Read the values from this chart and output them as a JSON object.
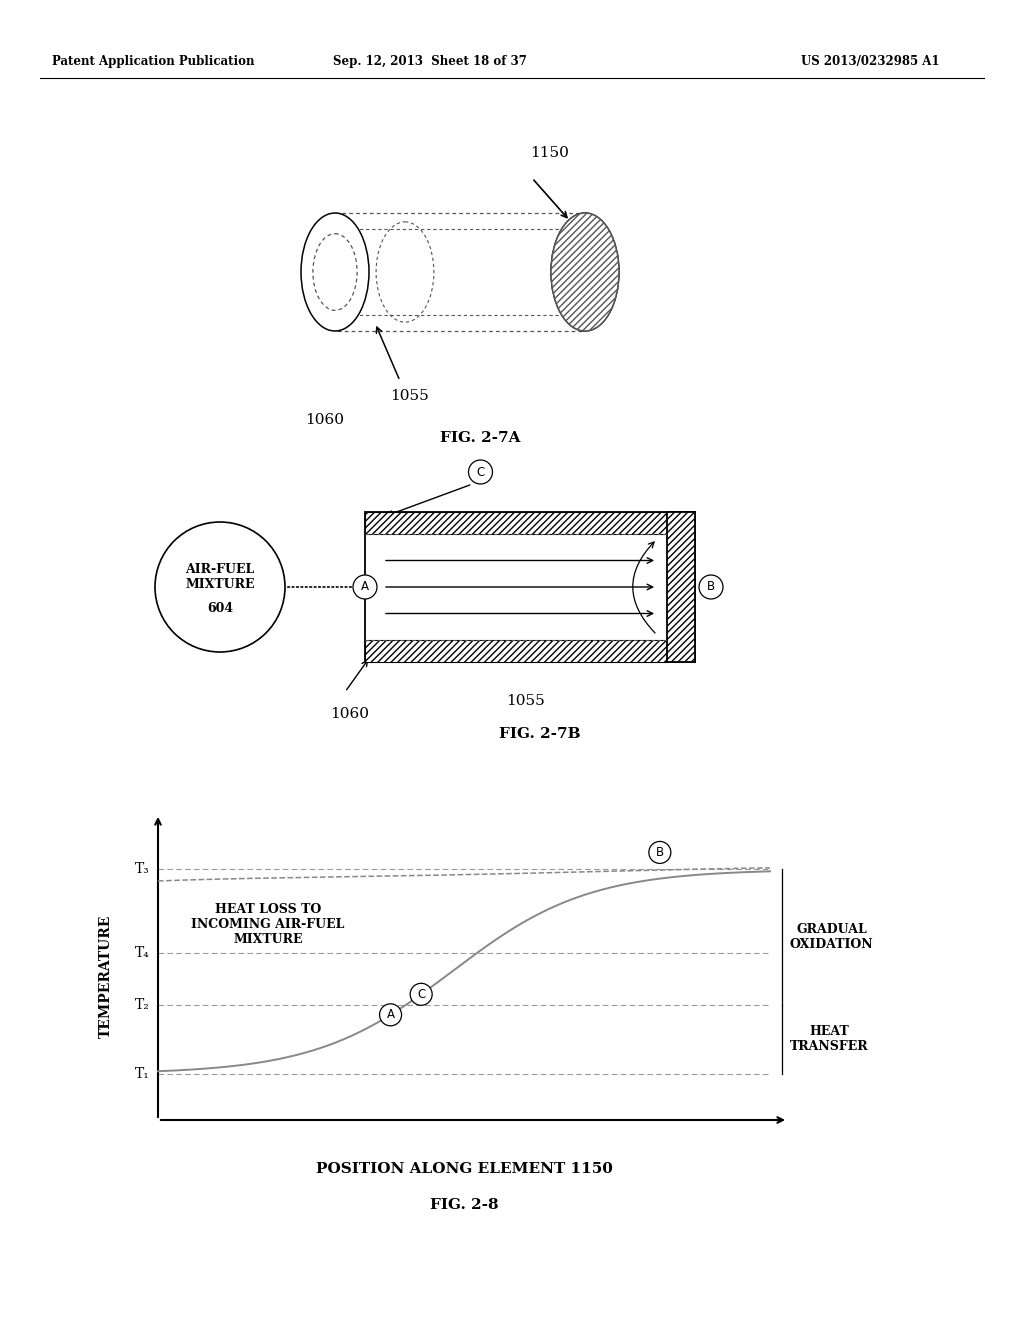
{
  "header_left": "Patent Application Publication",
  "header_center": "Sep. 12, 2013  Sheet 18 of 37",
  "header_right": "US 2013/0232985 A1",
  "fig_27a_label": "FIG. 2-7A",
  "fig_27b_label": "FIG. 2-7B",
  "fig_28_label": "FIG. 2-8",
  "label_1150": "1150",
  "label_1055_a": "1055",
  "label_1060_a": "1060",
  "label_1055_b": "1055",
  "label_1060_b": "1060",
  "label_604": "AIR-FUEL\nMIXTURE\n604",
  "y_label": "TEMPERATURE",
  "x_label": "POSITION ALONG ELEMENT 1150",
  "T1": "T₁",
  "T2": "T₂",
  "T3": "T₃",
  "T4": "T₄",
  "text_heat_loss": "HEAT LOSS TO\nINCOMING AIR-FUEL\nMIXTURE",
  "text_gradual": "GRADUAL\nOXIDATION",
  "text_heat_transfer": "HEAT\nTRANSFER",
  "bg_color": "#ffffff"
}
